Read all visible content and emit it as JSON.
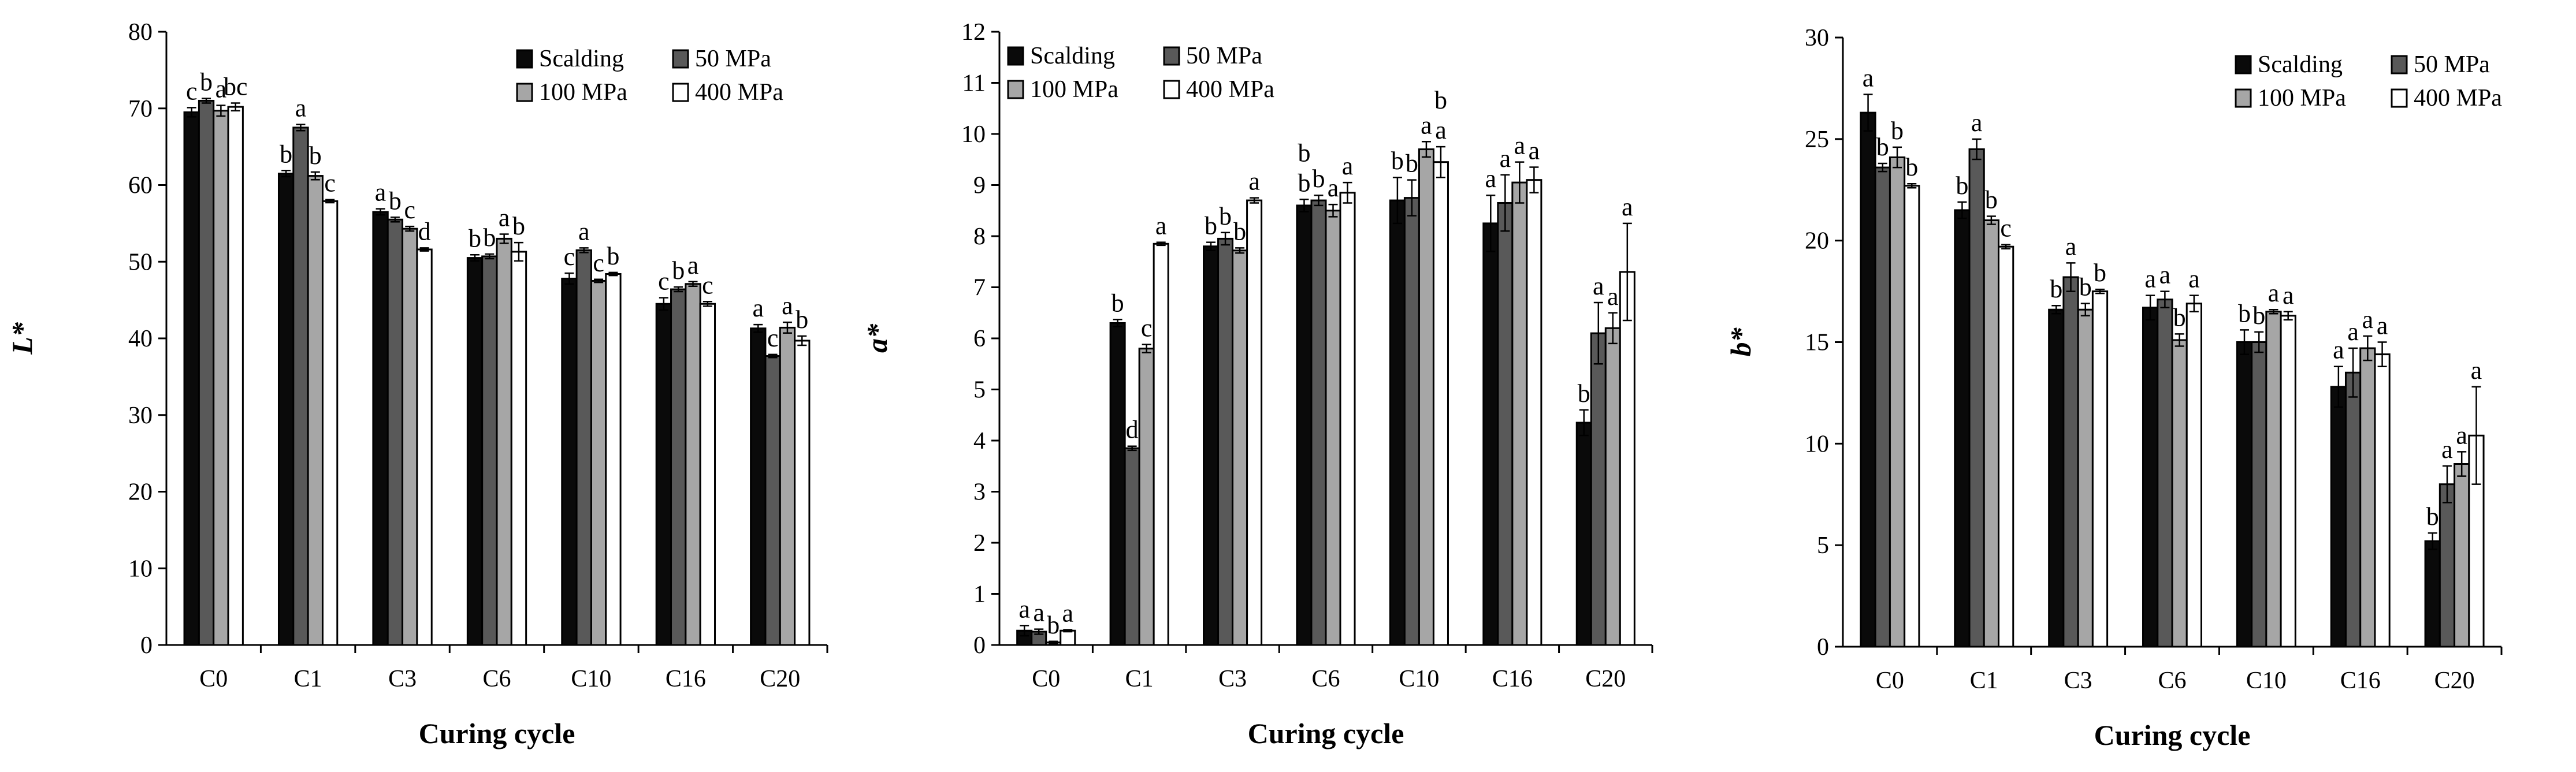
{
  "legend_colors": {
    "Scalding": "#0a0a0a",
    "50 MPa": "#595959",
    "100 MPa": "#a6a6a6",
    "400 MPa": "#ffffff"
  },
  "chart_data": [
    {
      "type": "bar",
      "title": "",
      "xlabel": "Curing cycle",
      "ylabel": "L*",
      "ylim": [
        0,
        80
      ],
      "yticks": [
        "0",
        "10",
        "20",
        "30",
        "40",
        "50",
        "60",
        "70",
        "80"
      ],
      "legend_position": "top-right",
      "categories": [
        "C0",
        "C1",
        "C3",
        "C6",
        "C10",
        "C16",
        "C20"
      ],
      "series": [
        {
          "name": "Scalding",
          "values": [
            69.5,
            61.5,
            56.5,
            50.5,
            47.8,
            44.5,
            41.3
          ],
          "errors": [
            0.6,
            0.4,
            0.4,
            0.4,
            0.7,
            0.8,
            0.5
          ],
          "labels": [
            "c",
            "b",
            "a",
            "b",
            "c",
            "c",
            "a"
          ]
        },
        {
          "name": "50 MPa",
          "values": [
            71.0,
            67.5,
            55.5,
            50.7,
            51.5,
            46.4,
            37.7
          ],
          "errors": [
            0.3,
            0.4,
            0.3,
            0.3,
            0.3,
            0.3,
            0.2
          ],
          "labels": [
            "b",
            "a",
            "b",
            "b",
            "a",
            "b",
            "c"
          ]
        },
        {
          "name": "100 MPa",
          "values": [
            69.7,
            61.2,
            54.3,
            53.0,
            47.5,
            47.1,
            41.4
          ],
          "errors": [
            0.7,
            0.5,
            0.3,
            0.6,
            0.2,
            0.3,
            0.7
          ],
          "labels": [
            "a",
            "b",
            "c",
            "a",
            "c",
            "a",
            "a"
          ]
        },
        {
          "name": "400 MPa",
          "values": [
            70.2,
            57.9,
            51.6,
            51.3,
            48.4,
            44.5,
            39.7
          ],
          "errors": [
            0.5,
            0.2,
            0.2,
            1.2,
            0.2,
            0.3,
            0.6
          ],
          "labels": [
            "bc",
            "c",
            "d",
            "b",
            "b",
            "c",
            "b"
          ]
        }
      ]
    },
    {
      "type": "bar",
      "title": "",
      "xlabel": "Curing cycle",
      "ylabel": "a*",
      "ylim": [
        0,
        12
      ],
      "yticks": [
        "0",
        "1",
        "2",
        "3",
        "4",
        "5",
        "6",
        "7",
        "8",
        "9",
        "10",
        "11",
        "12"
      ],
      "legend_position": "top-left",
      "categories": [
        "C0",
        "C1",
        "C3",
        "C6",
        "C10",
        "C16",
        "C20"
      ],
      "series": [
        {
          "name": "Scalding",
          "values": [
            0.28,
            6.3,
            7.8,
            8.6,
            8.7,
            8.25,
            4.35
          ],
          "errors": [
            0.1,
            0.07,
            0.08,
            0.12,
            0.45,
            0.55,
            0.25
          ],
          "labels": [
            "a",
            "b",
            "b",
            "b",
            "b",
            "a",
            "b"
          ]
        },
        {
          "name": "50 MPa",
          "values": [
            0.26,
            3.85,
            7.95,
            8.7,
            8.75,
            8.65,
            6.1
          ],
          "errors": [
            0.05,
            0.04,
            0.12,
            0.1,
            0.35,
            0.55,
            0.6
          ],
          "labels": [
            "a",
            "d",
            "b",
            "b",
            "b",
            "a",
            "a"
          ]
        },
        {
          "name": "100 MPa",
          "values": [
            0.05,
            5.8,
            7.72,
            8.5,
            9.7,
            9.05,
            6.2
          ],
          "errors": [
            0.02,
            0.08,
            0.05,
            0.12,
            0.15,
            0.4,
            0.3
          ],
          "labels": [
            "b",
            "c",
            "b",
            "a",
            "a",
            "a",
            "a"
          ]
        },
        {
          "name": "400 MPa",
          "values": [
            0.28,
            7.85,
            8.7,
            8.85,
            9.45,
            9.1,
            7.3
          ],
          "errors": [
            0.02,
            0.03,
            0.05,
            0.2,
            0.3,
            0.25,
            0.95
          ],
          "labels": [
            "a",
            "a",
            "a",
            "a",
            "a",
            "a",
            "a"
          ]
        }
      ],
      "extra_labels": [
        {
          "category": "C6",
          "series": "Scalding",
          "text": "b"
        },
        {
          "category": "C10",
          "series": "400 MPa",
          "text": "b"
        }
      ]
    },
    {
      "type": "bar",
      "title": "",
      "xlabel": "Curing cycle",
      "ylabel": "b*",
      "ylim": [
        0,
        30
      ],
      "yticks": [
        "0",
        "5",
        "10",
        "15",
        "20",
        "25",
        "30"
      ],
      "legend_position": "top-right",
      "categories": [
        "C0",
        "C1",
        "C3",
        "C6",
        "C10",
        "C16",
        "C20"
      ],
      "series": [
        {
          "name": "Scalding",
          "values": [
            26.3,
            21.5,
            16.6,
            16.7,
            15.0,
            12.8,
            5.2
          ],
          "errors": [
            0.9,
            0.4,
            0.2,
            0.6,
            0.6,
            1.0,
            0.4
          ],
          "labels": [
            "a",
            "b",
            "b",
            "a",
            "b",
            "a",
            "b"
          ]
        },
        {
          "name": "50 MPa",
          "values": [
            23.6,
            24.5,
            18.2,
            17.1,
            15.0,
            13.5,
            8.0
          ],
          "errors": [
            0.2,
            0.5,
            0.7,
            0.4,
            0.5,
            1.2,
            0.9
          ],
          "labels": [
            "b",
            "a",
            "a",
            "a",
            "b",
            "a",
            "a"
          ]
        },
        {
          "name": "100 MPa",
          "values": [
            24.1,
            21.0,
            16.6,
            15.1,
            16.5,
            14.7,
            9.0
          ],
          "errors": [
            0.5,
            0.2,
            0.3,
            0.3,
            0.1,
            0.6,
            0.6
          ],
          "labels": [
            "b",
            "b",
            "b",
            "b",
            "a",
            "a",
            "a"
          ]
        },
        {
          "name": "400 MPa",
          "values": [
            22.7,
            19.7,
            17.5,
            16.9,
            16.3,
            14.4,
            10.4
          ],
          "errors": [
            0.1,
            0.1,
            0.1,
            0.4,
            0.2,
            0.6,
            2.4
          ],
          "labels": [
            "b",
            "c",
            "b",
            "a",
            "a",
            "a",
            "a"
          ]
        }
      ]
    }
  ]
}
